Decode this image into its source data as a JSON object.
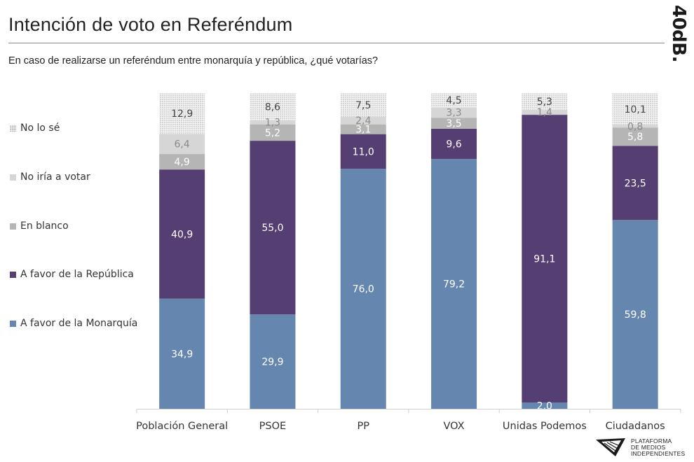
{
  "header": {
    "title": "Intención de voto en Referéndum",
    "subtitle": "En caso de realizarse un referéndum entre monarquía y república, ¿qué votarías?",
    "brand": "40dB."
  },
  "footer": {
    "logo_lines": [
      "PLATAFORMA",
      "DE MEDIOS",
      "INDEPENDIENTES"
    ]
  },
  "chart_data": {
    "type": "bar",
    "stacked": true,
    "percent_stacked": true,
    "title": "Intención de voto en Referéndum",
    "subtitle": "En caso de realizarse un referéndum entre monarquía y república, ¿qué votarías?",
    "xlabel": "",
    "ylabel": "",
    "ylim": [
      0,
      100
    ],
    "grid": false,
    "legend_position": "left",
    "categories": [
      "Población General",
      "PSOE",
      "PP",
      "VOX",
      "Unidas Podemos",
      "Ciudadanos"
    ],
    "series": [
      {
        "name": "A favor de la Monarquía",
        "color": "#6586ae",
        "label_color": "#ffffff",
        "values": [
          34.9,
          29.9,
          76.0,
          79.2,
          2.0,
          59.8
        ],
        "labels": [
          "34,9",
          "29,9",
          "76,0",
          "79,2",
          "2,0",
          "59,8"
        ]
      },
      {
        "name": "A favor de la República",
        "color": "#553e72",
        "label_color": "#ffffff",
        "values": [
          40.9,
          55.0,
          11.0,
          9.6,
          91.1,
          23.5
        ],
        "labels": [
          "40,9",
          "55,0",
          "11,0",
          "9,6",
          "91,1",
          "23,5"
        ]
      },
      {
        "name": "En blanco",
        "color": "#b5b5b5",
        "label_color": "#ffffff",
        "values": [
          4.9,
          5.2,
          3.1,
          3.5,
          0.2,
          5.8
        ],
        "labels": [
          "4,9",
          "5,2",
          "3,1",
          "3,5",
          "",
          "5,8"
        ]
      },
      {
        "name": "No iría a votar",
        "color": "#d6d6d6",
        "label_color": "#8a8a8a",
        "values": [
          6.4,
          1.3,
          2.4,
          3.3,
          1.4,
          0.8
        ],
        "labels": [
          "6,4",
          "1,3",
          "2,4",
          "3,3",
          "1,4",
          "0,8"
        ]
      },
      {
        "name": "No lo sé",
        "color": "#e8e8e8",
        "pattern": "dotted",
        "label_color": "#444444",
        "values": [
          12.9,
          8.6,
          7.5,
          4.5,
          5.3,
          10.1
        ],
        "labels": [
          "12,9",
          "8,6",
          "7,5",
          "4,5",
          "5,3",
          "10,1"
        ]
      }
    ],
    "legend": [
      "No lo sé",
      "No iría a votar",
      "En blanco",
      "A favor de la República",
      "A favor de la Monarquía"
    ]
  }
}
